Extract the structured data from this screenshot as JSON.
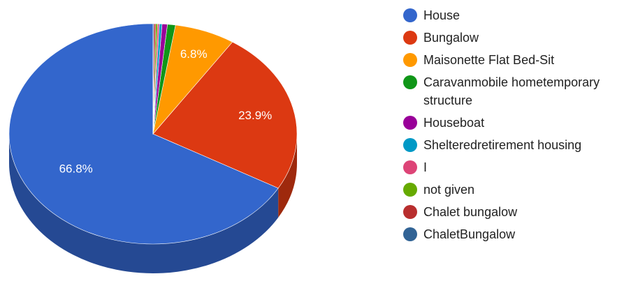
{
  "chart_data": {
    "type": "pie",
    "is_3d": true,
    "legend_position": "right",
    "slices": [
      {
        "label": "House",
        "value": 66.8,
        "color": "#3366cc",
        "show_label": true
      },
      {
        "label": "Bungalow",
        "value": 23.9,
        "color": "#dc3912",
        "show_label": true
      },
      {
        "label": "Maisonette Flat Bed-Sit",
        "value": 6.8,
        "color": "#ff9900",
        "show_label": true
      },
      {
        "label": "Caravanmobile hometemporary structure",
        "value": 0.9,
        "color": "#109618",
        "show_label": false
      },
      {
        "label": "Houseboat",
        "value": 0.6,
        "color": "#990099",
        "show_label": false
      },
      {
        "label": "Shelteredretirement housing",
        "value": 0.3,
        "color": "#0099c6",
        "show_label": false
      },
      {
        "label": "I",
        "value": 0.2,
        "color": "#dd4477",
        "show_label": false
      },
      {
        "label": "not given",
        "value": 0.2,
        "color": "#66aa00",
        "show_label": false
      },
      {
        "label": "Chalet bungalow",
        "value": 0.2,
        "color": "#b82e2e",
        "show_label": false
      },
      {
        "label": "ChaletBungalow",
        "value": 0.1,
        "color": "#316395",
        "show_label": false
      }
    ],
    "data_labels": [
      "66.8%",
      "23.9%",
      "6.8%"
    ]
  }
}
